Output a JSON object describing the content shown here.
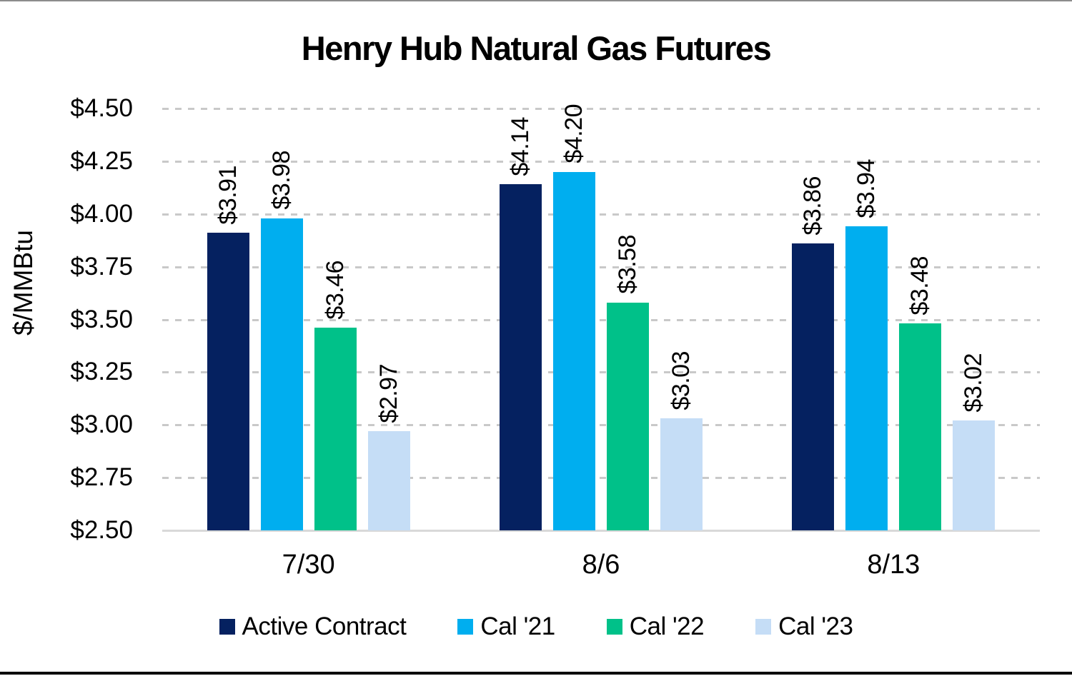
{
  "title": "Henry Hub Natural Gas Futures",
  "chart_data": {
    "type": "bar",
    "title": "Henry Hub Natural Gas Futures",
    "xlabel": "",
    "ylabel": "$/MMBtu",
    "categories": [
      "7/30",
      "8/6",
      "8/13"
    ],
    "series": [
      {
        "name": "Active Contract",
        "color": "#052160",
        "values": [
          3.91,
          4.14,
          3.86
        ],
        "labels": [
          "$3.91",
          "$4.14",
          "$3.86"
        ]
      },
      {
        "name": "Cal '21",
        "color": "#00AEEF",
        "values": [
          3.98,
          4.2,
          3.94
        ],
        "labels": [
          "$3.98",
          "$4.20",
          "$3.94"
        ]
      },
      {
        "name": "Cal '22",
        "color": "#00C189",
        "values": [
          3.46,
          3.58,
          3.48
        ],
        "labels": [
          "$3.46",
          "$3.58",
          "$3.48"
        ]
      },
      {
        "name": "Cal '23",
        "color": "#C5DDF6",
        "values": [
          2.97,
          3.03,
          3.02
        ],
        "labels": [
          "$2.97",
          "$3.03",
          "$3.02"
        ]
      }
    ],
    "y_ticks": [
      {
        "label": "$4.50",
        "value": 4.5
      },
      {
        "label": "$4.25",
        "value": 4.25
      },
      {
        "label": "$4.00",
        "value": 4.0
      },
      {
        "label": "$3.75",
        "value": 3.75
      },
      {
        "label": "$3.50",
        "value": 3.5
      },
      {
        "label": "$3.25",
        "value": 3.25
      },
      {
        "label": "$3.00",
        "value": 3.0
      },
      {
        "label": "$2.75",
        "value": 2.75
      },
      {
        "label": "$2.50",
        "value": 2.5
      }
    ],
    "ylim": [
      2.5,
      4.5
    ],
    "y_step": 0.25,
    "grid": "horizontal-dashed",
    "legend_position": "bottom",
    "colors": {
      "gridline": "#c9c9c9",
      "baseline": "#d9d9d9",
      "text": "#000000",
      "background": "#ffffff"
    }
  }
}
